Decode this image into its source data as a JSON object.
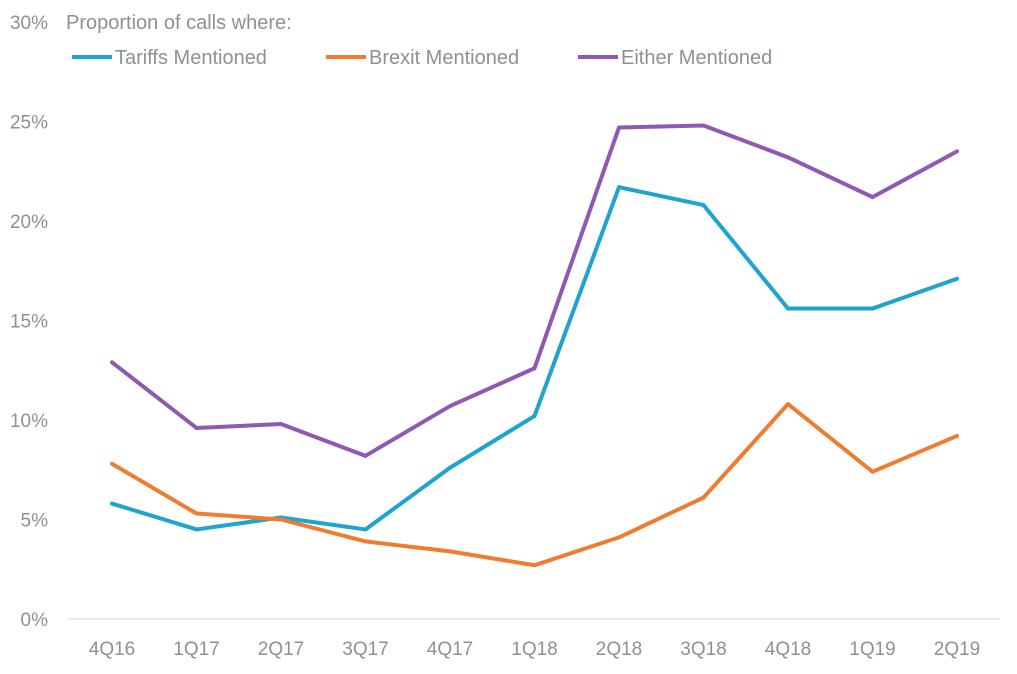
{
  "chart_data": {
    "type": "line",
    "title": "Proportion of calls where:",
    "xlabel": "",
    "ylabel": "",
    "categories": [
      "4Q16",
      "1Q17",
      "2Q17",
      "3Q17",
      "4Q17",
      "1Q18",
      "2Q18",
      "3Q18",
      "4Q18",
      "1Q19",
      "2Q19"
    ],
    "ylim": [
      0,
      30
    ],
    "yticks": [
      0,
      5,
      10,
      15,
      20,
      25,
      30
    ],
    "ytick_labels": [
      "0%",
      "5%",
      "10%",
      "15%",
      "20%",
      "25%",
      "30%"
    ],
    "grid": false,
    "legend_position": "top",
    "series": [
      {
        "name": "Tariffs Mentioned",
        "color": "#1fa3cf",
        "values": [
          5.8,
          4.5,
          5.1,
          4.5,
          7.6,
          10.2,
          21.7,
          20.8,
          15.6,
          15.6,
          17.1
        ]
      },
      {
        "name": "Brexit Mentioned",
        "color": "#ee7d31",
        "values": [
          7.8,
          5.3,
          5.0,
          3.9,
          3.4,
          2.7,
          4.1,
          6.1,
          10.8,
          7.4,
          9.2
        ]
      },
      {
        "name": "Either Mentioned",
        "color": "#8e59b5",
        "values": [
          12.9,
          9.6,
          9.8,
          8.2,
          10.7,
          12.6,
          24.7,
          24.8,
          23.2,
          21.2,
          23.5
        ]
      }
    ]
  }
}
